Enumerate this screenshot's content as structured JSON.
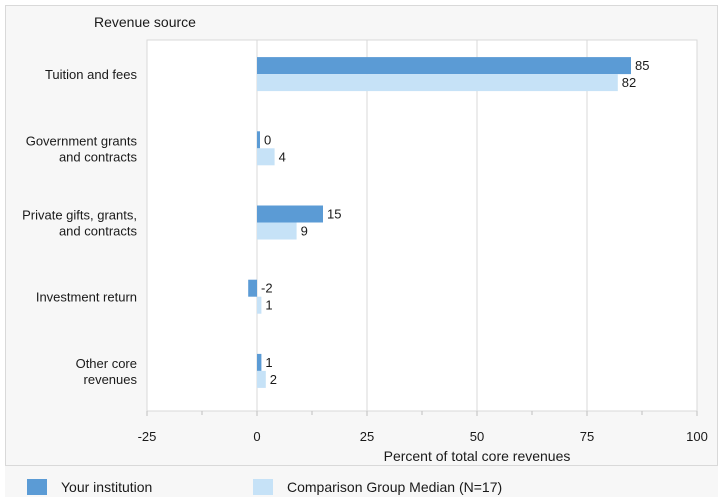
{
  "chart_data": {
    "type": "bar",
    "orientation": "horizontal",
    "title": "Revenue source",
    "xlabel": "Percent of total core revenues",
    "ylabel": "",
    "xlim": [
      -25,
      100
    ],
    "xticks": [
      -25,
      0,
      25,
      50,
      75,
      100
    ],
    "grid": true,
    "legend_position": "bottom",
    "categories": [
      [
        "Tuition and fees"
      ],
      [
        "Government grants",
        "and contracts"
      ],
      [
        "Private gifts, grants,",
        "and contracts"
      ],
      [
        "Investment return"
      ],
      [
        "Other core",
        "revenues"
      ]
    ],
    "series": [
      {
        "name": "Your institution",
        "color": "#5b9bd5",
        "values": [
          85,
          0,
          15,
          -2,
          1
        ]
      },
      {
        "name": "Comparison Group Median (N=17)",
        "color": "#c6e2f7",
        "values": [
          82,
          4,
          9,
          1,
          2
        ]
      }
    ]
  },
  "legend": {
    "series_1_label": "Your institution",
    "series_2_label": "Comparison Group Median (N=17)",
    "series_1_color": "#5b9bd5",
    "series_2_color": "#c6e2f7"
  }
}
